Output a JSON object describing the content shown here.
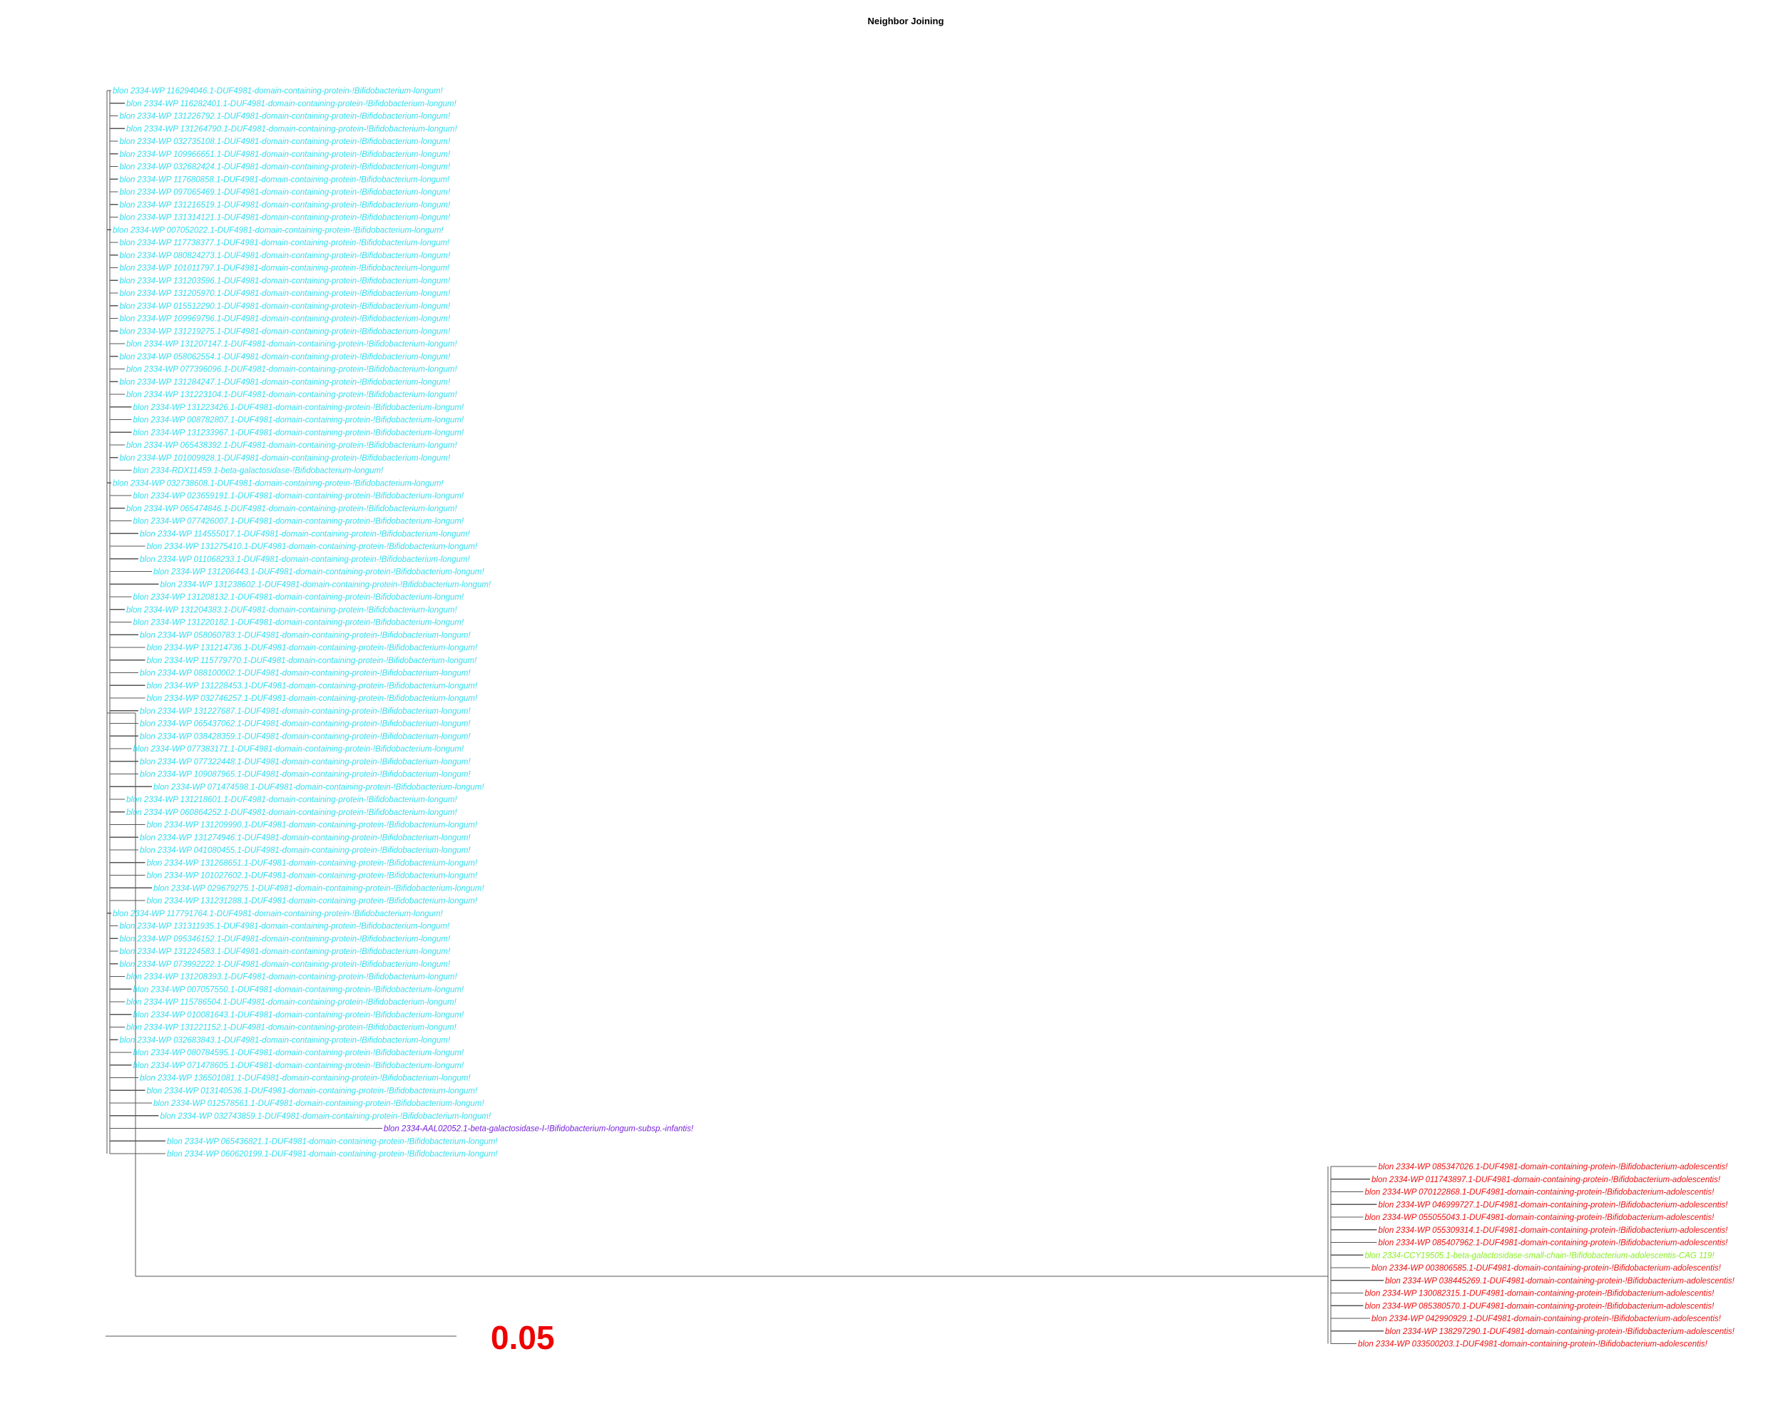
{
  "title": "Neighbor Joining",
  "scale_bar": {
    "label": "0.05",
    "color": "#ee0000"
  },
  "colors": {
    "longum": "#33ddee",
    "infantis": "#7722dd",
    "adolescentis": "#ee1111",
    "adolescentis_dag": "#88ee22",
    "branch": "#555555"
  },
  "clade_longum": [
    {
      "label": "blon 2334-WP 116294046.1-DUF4981-domain-containing-protein-!Bifidobacterium-longum!",
      "group": "longum",
      "depth": 0
    },
    {
      "label": "blon 2334-WP 116282401.1-DUF4981-domain-containing-protein-!Bifidobacterium-longum!",
      "group": "longum",
      "depth": 2
    },
    {
      "label": "blon 2334-WP 131226792.1-DUF4981-domain-containing-protein-!Bifidobacterium-longum!",
      "group": "longum",
      "depth": 1
    },
    {
      "label": "blon 2334-WP 131264790.1-DUF4981-domain-containing-protein-!Bifidobacterium-longum!",
      "group": "longum",
      "depth": 2
    },
    {
      "label": "blon 2334-WP 032735108.1-DUF4981-domain-containing-protein-!Bifidobacterium-longum!",
      "group": "longum",
      "depth": 1
    },
    {
      "label": "blon 2334-WP 109966651.1-DUF4981-domain-containing-protein-!Bifidobacterium-longum!",
      "group": "longum",
      "depth": 1
    },
    {
      "label": "blon 2334-WP 032682424.1-DUF4981-domain-containing-protein-!Bifidobacterium-longum!",
      "group": "longum",
      "depth": 1
    },
    {
      "label": "blon 2334-WP 117680858.1-DUF4981-domain-containing-protein-!Bifidobacterium-longum!",
      "group": "longum",
      "depth": 1
    },
    {
      "label": "blon 2334-WP 097065469.1-DUF4981-domain-containing-protein-!Bifidobacterium-longum!",
      "group": "longum",
      "depth": 1
    },
    {
      "label": "blon 2334-WP 131216519.1-DUF4981-domain-containing-protein-!Bifidobacterium-longum!",
      "group": "longum",
      "depth": 1
    },
    {
      "label": "blon 2334-WP 131314121.1-DUF4981-domain-containing-protein-!Bifidobacterium-longum!",
      "group": "longum",
      "depth": 1
    },
    {
      "label": "blon 2334-WP 007052022.1-DUF4981-domain-containing-protein-!Bifidobacterium-longum!",
      "group": "longum",
      "depth": 0
    },
    {
      "label": "blon 2334-WP 117738377.1-DUF4981-domain-containing-protein-!Bifidobacterium-longum!",
      "group": "longum",
      "depth": 1
    },
    {
      "label": "blon 2334-WP 080824273.1-DUF4981-domain-containing-protein-!Bifidobacterium-longum!",
      "group": "longum",
      "depth": 1
    },
    {
      "label": "blon 2334-WP 101011797.1-DUF4981-domain-containing-protein-!Bifidobacterium-longum!",
      "group": "longum",
      "depth": 1
    },
    {
      "label": "blon 2334-WP 131203596.1-DUF4981-domain-containing-protein-!Bifidobacterium-longum!",
      "group": "longum",
      "depth": 1
    },
    {
      "label": "blon 2334-WP 131205970.1-DUF4981-domain-containing-protein-!Bifidobacterium-longum!",
      "group": "longum",
      "depth": 1
    },
    {
      "label": "blon 2334-WP 015512290.1-DUF4981-domain-containing-protein-!Bifidobacterium-longum!",
      "group": "longum",
      "depth": 1
    },
    {
      "label": "blon 2334-WP 109969796.1-DUF4981-domain-containing-protein-!Bifidobacterium-longum!",
      "group": "longum",
      "depth": 1
    },
    {
      "label": "blon 2334-WP 131219275.1-DUF4981-domain-containing-protein-!Bifidobacterium-longum!",
      "group": "longum",
      "depth": 1
    },
    {
      "label": "blon 2334-WP 131207147.1-DUF4981-domain-containing-protein-!Bifidobacterium-longum!",
      "group": "longum",
      "depth": 2
    },
    {
      "label": "blon 2334-WP 058062554.1-DUF4981-domain-containing-protein-!Bifidobacterium-longum!",
      "group": "longum",
      "depth": 1
    },
    {
      "label": "blon 2334-WP 077396096.1-DUF4981-domain-containing-protein-!Bifidobacterium-longum!",
      "group": "longum",
      "depth": 2
    },
    {
      "label": "blon 2334-WP 131284247.1-DUF4981-domain-containing-protein-!Bifidobacterium-longum!",
      "group": "longum",
      "depth": 1
    },
    {
      "label": "blon 2334-WP 131223104.1-DUF4981-domain-containing-protein-!Bifidobacterium-longum!",
      "group": "longum",
      "depth": 2
    },
    {
      "label": "blon 2334-WP 131223426.1-DUF4981-domain-containing-protein-!Bifidobacterium-longum!",
      "group": "longum",
      "depth": 3
    },
    {
      "label": "blon 2334-WP 008782807.1-DUF4981-domain-containing-protein-!Bifidobacterium-longum!",
      "group": "longum",
      "depth": 3
    },
    {
      "label": "blon 2334-WP 131233967.1-DUF4981-domain-containing-protein-!Bifidobacterium-longum!",
      "group": "longum",
      "depth": 3
    },
    {
      "label": "blon 2334-WP 065438392.1-DUF4981-domain-containing-protein-!Bifidobacterium-longum!",
      "group": "longum",
      "depth": 2
    },
    {
      "label": "blon 2334-WP 101009928.1-DUF4981-domain-containing-protein-!Bifidobacterium-longum!",
      "group": "longum",
      "depth": 1
    },
    {
      "label": "blon 2334-RDX11459.1-beta-galactosidase-!Bifidobacterium-longum!",
      "group": "longum",
      "depth": 3
    },
    {
      "label": "blon 2334-WP 032738608.1-DUF4981-domain-containing-protein-!Bifidobacterium-longum!",
      "group": "longum",
      "depth": 0
    },
    {
      "label": "blon 2334-WP 023659191.1-DUF4981-domain-containing-protein-!Bifidobacterium-longum!",
      "group": "longum",
      "depth": 3
    },
    {
      "label": "blon 2334-WP 065474846.1-DUF4981-domain-containing-protein-!Bifidobacterium-longum!",
      "group": "longum",
      "depth": 2
    },
    {
      "label": "blon 2334-WP 077426007.1-DUF4981-domain-containing-protein-!Bifidobacterium-longum!",
      "group": "longum",
      "depth": 3
    },
    {
      "label": "blon 2334-WP 114555017.1-DUF4981-domain-containing-protein-!Bifidobacterium-longum!",
      "group": "longum",
      "depth": 4
    },
    {
      "label": "blon 2334-WP 131275410.1-DUF4981-domain-containing-protein-!Bifidobacterium-longum!",
      "group": "longum",
      "depth": 5
    },
    {
      "label": "blon 2334-WP 011068233.1-DUF4981-domain-containing-protein-!Bifidobacterium-longum!",
      "group": "longum",
      "depth": 4
    },
    {
      "label": "blon 2334-WP 131206443.1-DUF4981-domain-containing-protein-!Bifidobacterium-longum!",
      "group": "longum",
      "depth": 6
    },
    {
      "label": "blon 2334-WP 131238602.1-DUF4981-domain-containing-protein-!Bifidobacterium-longum!",
      "group": "longum",
      "depth": 7
    },
    {
      "label": "blon 2334-WP 131208132.1-DUF4981-domain-containing-protein-!Bifidobacterium-longum!",
      "group": "longum",
      "depth": 3
    },
    {
      "label": "blon 2334-WP 131204383.1-DUF4981-domain-containing-protein-!Bifidobacterium-longum!",
      "group": "longum",
      "depth": 2
    },
    {
      "label": "blon 2334-WP 131220182.1-DUF4981-domain-containing-protein-!Bifidobacterium-longum!",
      "group": "longum",
      "depth": 3
    },
    {
      "label": "blon 2334-WP 058060783.1-DUF4981-domain-containing-protein-!Bifidobacterium-longum!",
      "group": "longum",
      "depth": 4
    },
    {
      "label": "blon 2334-WP 131214736.1-DUF4981-domain-containing-protein-!Bifidobacterium-longum!",
      "group": "longum",
      "depth": 5
    },
    {
      "label": "blon 2334-WP 115779770.1-DUF4981-domain-containing-protein-!Bifidobacterium-longum!",
      "group": "longum",
      "depth": 5
    },
    {
      "label": "blon 2334-WP 088100002.1-DUF4981-domain-containing-protein-!Bifidobacterium-longum!",
      "group": "longum",
      "depth": 4
    },
    {
      "label": "blon 2334-WP 131228453.1-DUF4981-domain-containing-protein-!Bifidobacterium-longum!",
      "group": "longum",
      "depth": 5
    },
    {
      "label": "blon 2334-WP 032746257.1-DUF4981-domain-containing-protein-!Bifidobacterium-longum!",
      "group": "longum",
      "depth": 5
    },
    {
      "label": "blon 2334-WP 131227687.1-DUF4981-domain-containing-protein-!Bifidobacterium-longum!",
      "group": "longum",
      "depth": 4
    },
    {
      "label": "blon 2334-WP 065437062.1-DUF4981-domain-containing-protein-!Bifidobacterium-longum!",
      "group": "longum",
      "depth": 4
    },
    {
      "label": "blon 2334-WP 038428359.1-DUF4981-domain-containing-protein-!Bifidobacterium-longum!",
      "group": "longum",
      "depth": 4
    },
    {
      "label": "blon 2334-WP 077383171.1-DUF4981-domain-containing-protein-!Bifidobacterium-longum!",
      "group": "longum",
      "depth": 3
    },
    {
      "label": "blon 2334-WP 077322448.1-DUF4981-domain-containing-protein-!Bifidobacterium-longum!",
      "group": "longum",
      "depth": 4
    },
    {
      "label": "blon 2334-WP 109087965.1-DUF4981-domain-containing-protein-!Bifidobacterium-longum!",
      "group": "longum",
      "depth": 4
    },
    {
      "label": "blon 2334-WP 071474598.1-DUF4981-domain-containing-protein-!Bifidobacterium-longum!",
      "group": "longum",
      "depth": 6
    },
    {
      "label": "blon 2334-WP 131218601.1-DUF4981-domain-containing-protein-!Bifidobacterium-longum!",
      "group": "longum",
      "depth": 2
    },
    {
      "label": "blon 2334-WP 060864252.1-DUF4981-domain-containing-protein-!Bifidobacterium-longum!",
      "group": "longum",
      "depth": 2
    },
    {
      "label": "blon 2334-WP 131209990.1-DUF4981-domain-containing-protein-!Bifidobacterium-longum!",
      "group": "longum",
      "depth": 5
    },
    {
      "label": "blon 2334-WP 131274946.1-DUF4981-domain-containing-protein-!Bifidobacterium-longum!",
      "group": "longum",
      "depth": 4
    },
    {
      "label": "blon 2334-WP 041080455.1-DUF4981-domain-containing-protein-!Bifidobacterium-longum!",
      "group": "longum",
      "depth": 4
    },
    {
      "label": "blon 2334-WP 131268651.1-DUF4981-domain-containing-protein-!Bifidobacterium-longum!",
      "group": "longum",
      "depth": 5
    },
    {
      "label": "blon 2334-WP 101027602.1-DUF4981-domain-containing-protein-!Bifidobacterium-longum!",
      "group": "longum",
      "depth": 5
    },
    {
      "label": "blon 2334-WP 029679275.1-DUF4981-domain-containing-protein-!Bifidobacterium-longum!",
      "group": "longum",
      "depth": 6
    },
    {
      "label": "blon 2334-WP 131231288.1-DUF4981-domain-containing-protein-!Bifidobacterium-longum!",
      "group": "longum",
      "depth": 5
    },
    {
      "label": "blon 2334-WP 117791764.1-DUF4981-domain-containing-protein-!Bifidobacterium-longum!",
      "group": "longum",
      "depth": 0
    },
    {
      "label": "blon 2334-WP 131311935.1-DUF4981-domain-containing-protein-!Bifidobacterium-longum!",
      "group": "longum",
      "depth": 1
    },
    {
      "label": "blon 2334-WP 095346152.1-DUF4981-domain-containing-protein-!Bifidobacterium-longum!",
      "group": "longum",
      "depth": 1
    },
    {
      "label": "blon 2334-WP 131224583.1-DUF4981-domain-containing-protein-!Bifidobacterium-longum!",
      "group": "longum",
      "depth": 1
    },
    {
      "label": "blon 2334-WP 073992222.1-DUF4981-domain-containing-protein-!Bifidobacterium-longum!",
      "group": "longum",
      "depth": 1
    },
    {
      "label": "blon 2334-WP 131208393.1-DUF4981-domain-containing-protein-!Bifidobacterium-longum!",
      "group": "longum",
      "depth": 2
    },
    {
      "label": "blon 2334-WP 007057550.1-DUF4981-domain-containing-protein-!Bifidobacterium-longum!",
      "group": "longum",
      "depth": 3
    },
    {
      "label": "blon 2334-WP 115786504.1-DUF4981-domain-containing-protein-!Bifidobacterium-longum!",
      "group": "longum",
      "depth": 2
    },
    {
      "label": "blon 2334-WP 010081643.1-DUF4981-domain-containing-protein-!Bifidobacterium-longum!",
      "group": "longum",
      "depth": 3
    },
    {
      "label": "blon 2334-WP 131221152.1-DUF4981-domain-containing-protein-!Bifidobacterium-longum!",
      "group": "longum",
      "depth": 2
    },
    {
      "label": "blon 2334-WP 032683843.1-DUF4981-domain-containing-protein-!Bifidobacterium-longum!",
      "group": "longum",
      "depth": 1
    },
    {
      "label": "blon 2334-WP 080784595.1-DUF4981-domain-containing-protein-!Bifidobacterium-longum!",
      "group": "longum",
      "depth": 3
    },
    {
      "label": "blon 2334-WP 071478605.1-DUF4981-domain-containing-protein-!Bifidobacterium-longum!",
      "group": "longum",
      "depth": 3
    },
    {
      "label": "blon 2334-WP 136501081.1-DUF4981-domain-containing-protein-!Bifidobacterium-longum!",
      "group": "longum",
      "depth": 4
    },
    {
      "label": "blon 2334-WP 013140536.1-DUF4981-domain-containing-protein-!Bifidobacterium-longum!",
      "group": "longum",
      "depth": 5
    },
    {
      "label": "blon 2334-WP 012578561.1-DUF4981-domain-containing-protein-!Bifidobacterium-longum!",
      "group": "longum",
      "depth": 6
    },
    {
      "label": "blon 2334-WP 032743859.1-DUF4981-domain-containing-protein-!Bifidobacterium-longum!",
      "group": "longum",
      "depth": 7
    },
    {
      "label": "blon 2334-AAL02052.1-beta-galactosidase-I-!Bifidobacterium-longum-subsp.-infantis!",
      "group": "infantis",
      "depth": 40
    },
    {
      "label": "blon 2334-WP 065436821.1-DUF4981-domain-containing-protein-!Bifidobacterium-longum!",
      "group": "longum",
      "depth": 8
    },
    {
      "label": "blon 2334-WP 060620199.1-DUF4981-domain-containing-protein-!Bifidobacterium-longum!",
      "group": "longum",
      "depth": 8
    }
  ],
  "clade_adolescentis": [
    {
      "label": "blon 2334-WP 085347026.1-DUF4981-domain-containing-protein-!Bifidobacterium-adolescentis!",
      "group": "adolescentis",
      "depth": 3
    },
    {
      "label": "blon 2334-WP 011743897.1-DUF4981-domain-containing-protein-!Bifidobacterium-adolescentis!",
      "group": "adolescentis",
      "depth": 2
    },
    {
      "label": "blon 2334-WP 070122868.1-DUF4981-domain-containing-protein-!Bifidobacterium-adolescentis!",
      "group": "adolescentis",
      "depth": 1
    },
    {
      "label": "blon 2334-WP 046999727.1-DUF4981-domain-containing-protein-!Bifidobacterium-adolescentis!",
      "group": "adolescentis",
      "depth": 3
    },
    {
      "label": "blon 2334-WP 055055043.1-DUF4981-domain-containing-protein-!Bifidobacterium-adolescentis!",
      "group": "adolescentis",
      "depth": 1
    },
    {
      "label": "blon 2334-WP 055309314.1-DUF4981-domain-containing-protein-!Bifidobacterium-adolescentis!",
      "group": "adolescentis",
      "depth": 3
    },
    {
      "label": "blon 2334-WP 085407962.1-DUF4981-domain-containing-protein-!Bifidobacterium-adolescentis!",
      "group": "adolescentis",
      "depth": 3
    },
    {
      "label": "blon 2334-CCY19505.1-beta-galactosidase-small-chain-!Bifidobacterium-adolescentis-CAG 119!",
      "group": "adolescentis_dag",
      "depth": 1
    },
    {
      "label": "blon 2334-WP 003806585.1-DUF4981-domain-containing-protein-!Bifidobacterium-adolescentis!",
      "group": "adolescentis",
      "depth": 2
    },
    {
      "label": "blon 2334-WP 038445269.1-DUF4981-domain-containing-protein-!Bifidobacterium-adolescentis!",
      "group": "adolescentis",
      "depth": 4
    },
    {
      "label": "blon 2334-WP 130082315.1-DUF4981-domain-containing-protein-!Bifidobacterium-adolescentis!",
      "group": "adolescentis",
      "depth": 1
    },
    {
      "label": "blon 2334-WP 085380570.1-DUF4981-domain-containing-protein-!Bifidobacterium-adolescentis!",
      "group": "adolescentis",
      "depth": 1
    },
    {
      "label": "blon 2334-WP 042990929.1-DUF4981-domain-containing-protein-!Bifidobacterium-adolescentis!",
      "group": "adolescentis",
      "depth": 2
    },
    {
      "label": "blon 2334-WP 138297290.1-DUF4981-domain-containing-protein-!Bifidobacterium-adolescentis!",
      "group": "adolescentis",
      "depth": 4
    },
    {
      "label": "blon 2334-WP 033500203.1-DUF4981-domain-containing-protein-!Bifidobacterium-adolescentis!",
      "group": "adolescentis",
      "depth": 0
    }
  ]
}
